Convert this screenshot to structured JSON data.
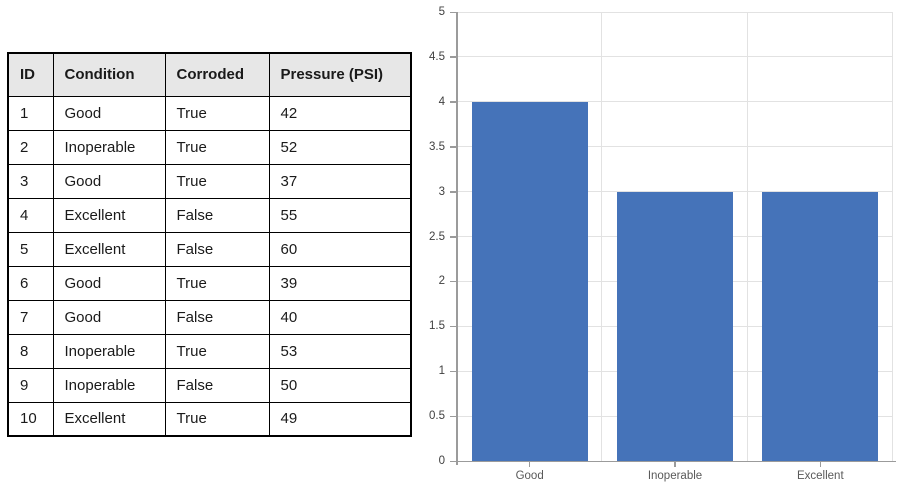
{
  "table": {
    "headers": [
      "ID",
      "Condition",
      "Corroded",
      "Pressure (PSI)"
    ],
    "rows": [
      [
        "1",
        "Good",
        "True",
        "42"
      ],
      [
        "2",
        "Inoperable",
        "True",
        "52"
      ],
      [
        "3",
        "Good",
        "True",
        "37"
      ],
      [
        "4",
        "Excellent",
        "False",
        "55"
      ],
      [
        "5",
        "Excellent",
        "False",
        "60"
      ],
      [
        "6",
        "Good",
        "True",
        "39"
      ],
      [
        "7",
        "Good",
        "False",
        "40"
      ],
      [
        "8",
        "Inoperable",
        "True",
        "53"
      ],
      [
        "9",
        "Inoperable",
        "False",
        "50"
      ],
      [
        "10",
        "Excellent",
        "True",
        "49"
      ]
    ],
    "header_bg": "#e7e7e7",
    "border_color": "#000000"
  },
  "chart_data": {
    "type": "bar",
    "categories": [
      "Good",
      "Inoperable",
      "Excellent"
    ],
    "values": [
      4,
      3,
      3
    ],
    "title": "",
    "xlabel": "",
    "ylabel": "",
    "ylim": [
      0,
      5
    ],
    "ytick_step": 0.5,
    "ytick_labels": [
      "0",
      "0.5",
      "1",
      "1.5",
      "2",
      "2.5",
      "3",
      "3.5",
      "4",
      "4.5",
      "5"
    ],
    "grid": true,
    "legend": "none",
    "bar_color": "#4573b9",
    "gridline_color": "#e2e2e2",
    "axis_color": "#9b9b9b",
    "y_label_color": "#404040",
    "x_label_color": "#595959"
  }
}
